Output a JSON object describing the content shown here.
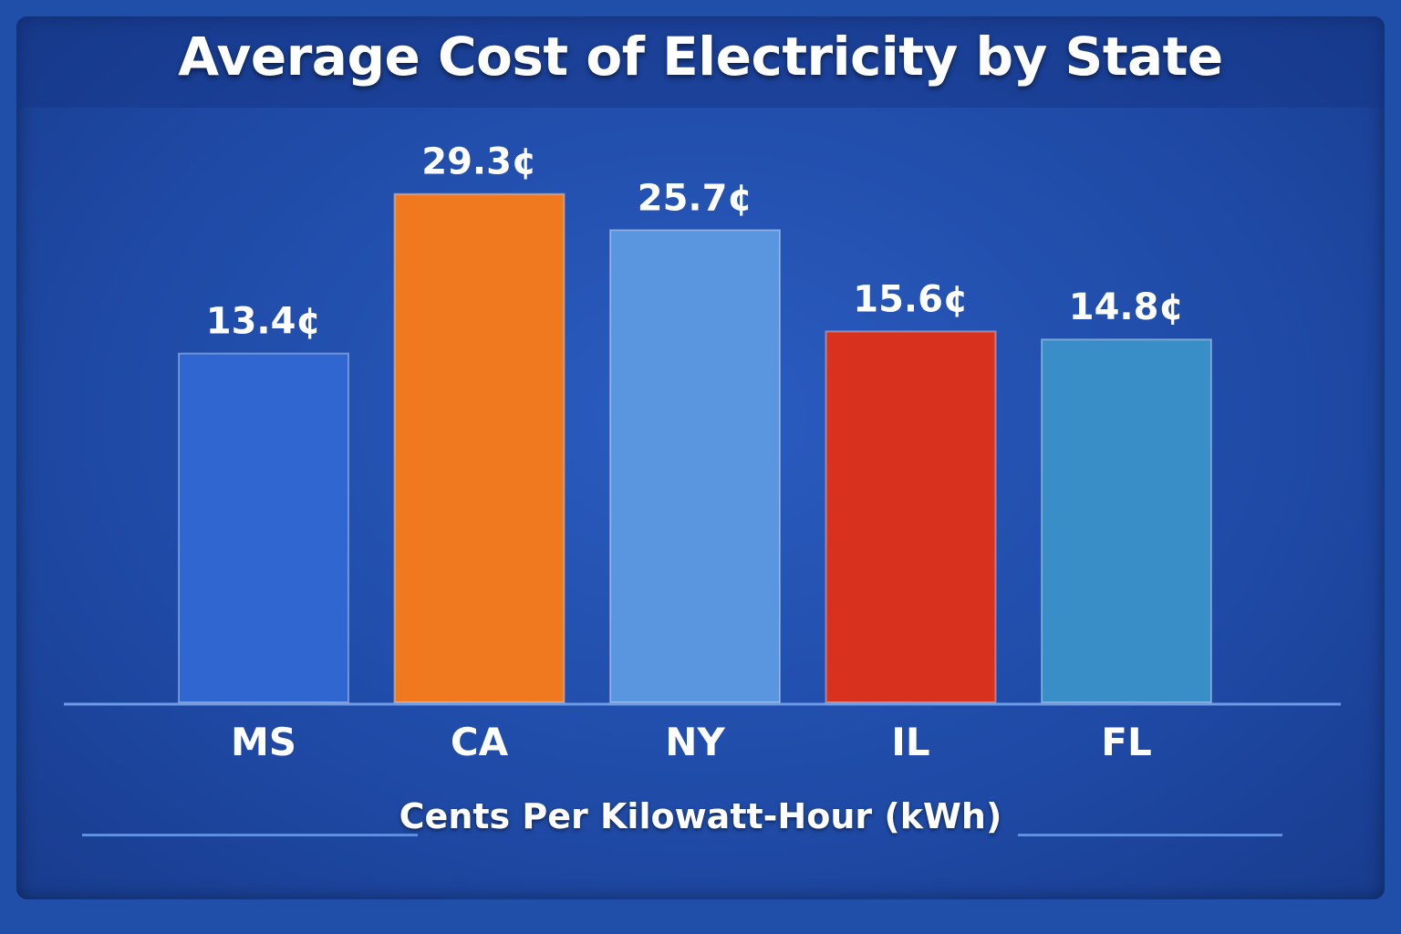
{
  "chart_data": {
    "type": "bar",
    "title": "Average Cost of Electricity by State",
    "xlabel": "Cents Per Kilowatt-Hour (kWh)",
    "ylabel": "",
    "categories": [
      "MS",
      "CA",
      "NY",
      "IL",
      "FL"
    ],
    "values": [
      13.4,
      29.3,
      25.7,
      15.6,
      14.8
    ],
    "data_labels": [
      "13.4¢",
      "29.3¢",
      "25.7¢",
      "15.6¢",
      "14.8¢"
    ],
    "colors": [
      "#2f66d0",
      "#f0781e",
      "#5a95e0",
      "#d8321e",
      "#3a8ec8"
    ],
    "grid": false,
    "legend": "none"
  }
}
